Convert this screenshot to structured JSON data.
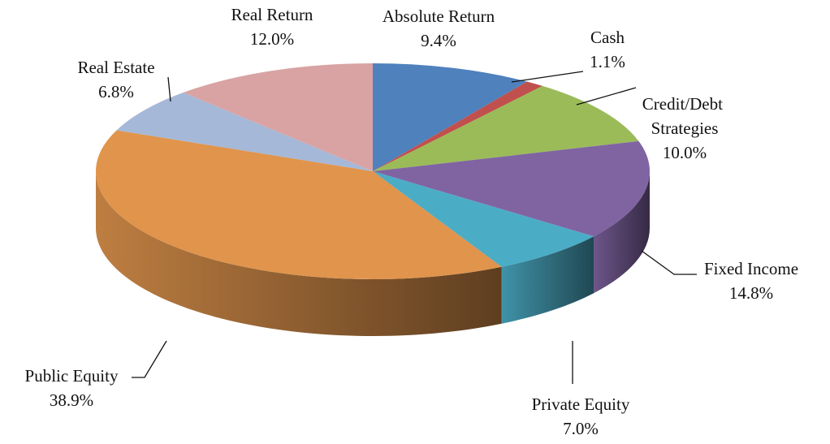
{
  "chart_data": {
    "type": "pie",
    "categories": [
      "Absolute Return",
      "Cash",
      "Credit/Debt Strategies",
      "Fixed Income",
      "Private Equity",
      "Public Equity",
      "Real Estate",
      "Real Return"
    ],
    "values": [
      9.4,
      1.1,
      10.0,
      14.8,
      7.0,
      38.9,
      6.8,
      12.0
    ],
    "value_labels": [
      "9.4%",
      "1.1%",
      "10.0%",
      "14.8%",
      "7.0%",
      "38.9%",
      "6.8%",
      "12.0%"
    ],
    "colors": [
      "#4f81bd",
      "#c0504d",
      "#9bbb59",
      "#8064a2",
      "#4bacc6",
      "#e0944c",
      "#a5b8d8",
      "#d9a3a3"
    ]
  }
}
